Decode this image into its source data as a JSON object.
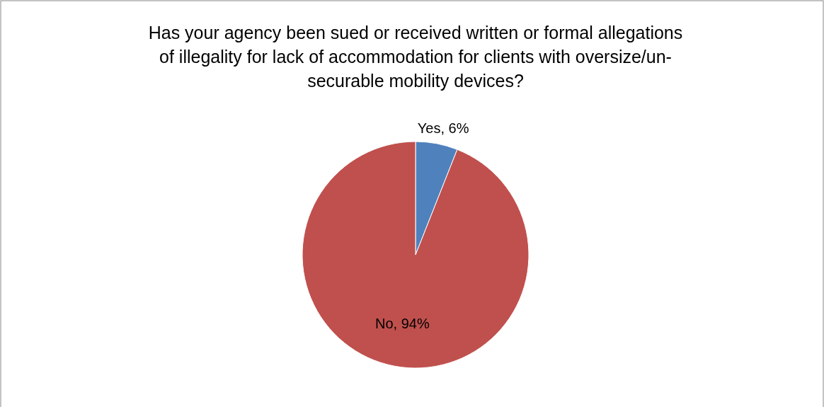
{
  "chart_data": {
    "type": "pie",
    "title": "Has your agency been sued or received written or formal allegations\nof illegality for lack of accommodation for clients with oversize/un-\nsecurable mobility devices?",
    "categories": [
      "Yes",
      "No"
    ],
    "values": [
      6,
      94
    ],
    "colors": [
      "#4f81bd",
      "#c0504d"
    ],
    "value_labels": [
      ", 6%",
      ", 94%"
    ],
    "legend": false
  }
}
